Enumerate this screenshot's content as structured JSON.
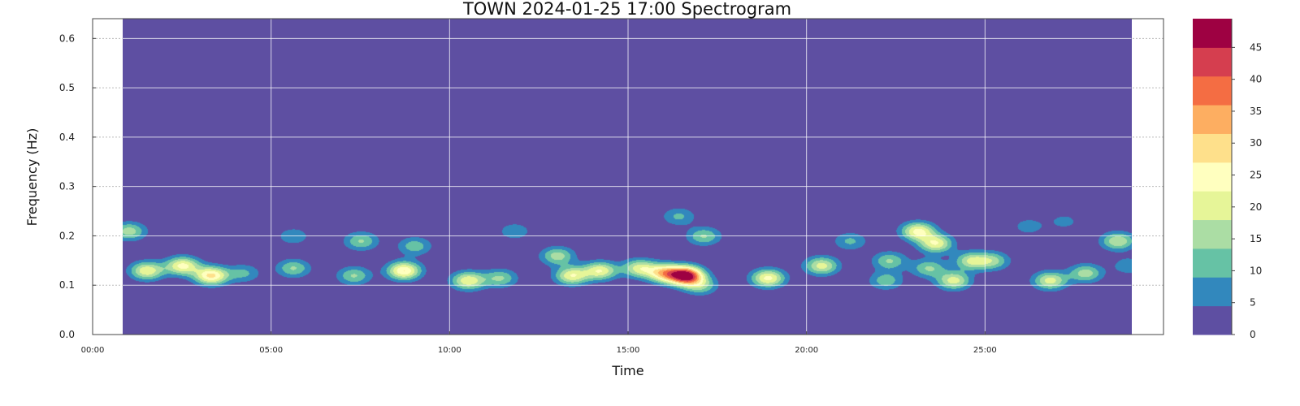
{
  "chart_data": {
    "type": "heatmap",
    "title": "TOWN 2024-01-25 17:00 Spectrogram",
    "xlabel": "Time",
    "ylabel": "Frequency (Hz)",
    "x_ticks": [
      "00:00",
      "05:00",
      "10:00",
      "15:00",
      "20:00",
      "25:00"
    ],
    "x_tick_minutes": [
      0,
      5,
      10,
      15,
      20,
      25
    ],
    "xlim_minutes": [
      0,
      30
    ],
    "data_range_minutes": [
      0.83,
      29.1
    ],
    "y_ticks": [
      "0.0",
      "0.1",
      "0.2",
      "0.3",
      "0.4",
      "0.5",
      "0.6"
    ],
    "y_tick_values": [
      0,
      0.1,
      0.2,
      0.3,
      0.4,
      0.5,
      0.6
    ],
    "ylim": [
      0,
      0.64
    ],
    "colorbar": {
      "ticks": [
        "0",
        "5",
        "10",
        "15",
        "20",
        "25",
        "30",
        "35",
        "40",
        "45"
      ],
      "levels": [
        0,
        4.5,
        9,
        13.5,
        18,
        22.5,
        27,
        31.5,
        36,
        40.5,
        45,
        49.5
      ],
      "colors": [
        "#5e4fa2",
        "#3288bd",
        "#66c2a5",
        "#abdda4",
        "#e6f598",
        "#ffffbf",
        "#fee08b",
        "#fdae61",
        "#f46d43",
        "#d53e4f",
        "#9e0142"
      ]
    },
    "grid": true,
    "peaks": [
      {
        "t": 1.0,
        "f": 0.21,
        "amp": 16
      },
      {
        "t": 1.5,
        "f": 0.13,
        "amp": 22
      },
      {
        "t": 2.5,
        "f": 0.14,
        "amp": 24
      },
      {
        "t": 3.3,
        "f": 0.12,
        "amp": 28
      },
      {
        "t": 4.2,
        "f": 0.125,
        "amp": 10
      },
      {
        "t": 5.6,
        "f": 0.135,
        "amp": 14
      },
      {
        "t": 5.6,
        "f": 0.2,
        "amp": 8
      },
      {
        "t": 7.3,
        "f": 0.12,
        "amp": 14
      },
      {
        "t": 7.5,
        "f": 0.19,
        "amp": 14
      },
      {
        "t": 8.7,
        "f": 0.13,
        "amp": 27
      },
      {
        "t": 9.0,
        "f": 0.18,
        "amp": 12
      },
      {
        "t": 10.5,
        "f": 0.11,
        "amp": 22
      },
      {
        "t": 11.4,
        "f": 0.115,
        "amp": 14
      },
      {
        "t": 11.8,
        "f": 0.21,
        "amp": 8
      },
      {
        "t": 13.0,
        "f": 0.16,
        "amp": 16
      },
      {
        "t": 13.4,
        "f": 0.12,
        "amp": 22
      },
      {
        "t": 14.2,
        "f": 0.13,
        "amp": 22
      },
      {
        "t": 15.3,
        "f": 0.135,
        "amp": 20
      },
      {
        "t": 16.0,
        "f": 0.125,
        "amp": 28
      },
      {
        "t": 16.6,
        "f": 0.12,
        "amp": 48
      },
      {
        "t": 16.4,
        "f": 0.24,
        "amp": 10
      },
      {
        "t": 17.0,
        "f": 0.1,
        "amp": 14
      },
      {
        "t": 17.1,
        "f": 0.2,
        "amp": 14
      },
      {
        "t": 18.9,
        "f": 0.115,
        "amp": 24
      },
      {
        "t": 20.4,
        "f": 0.14,
        "amp": 20
      },
      {
        "t": 21.2,
        "f": 0.19,
        "amp": 10
      },
      {
        "t": 22.3,
        "f": 0.15,
        "amp": 14
      },
      {
        "t": 22.2,
        "f": 0.11,
        "amp": 12
      },
      {
        "t": 23.1,
        "f": 0.21,
        "amp": 24
      },
      {
        "t": 23.6,
        "f": 0.185,
        "amp": 22
      },
      {
        "t": 23.4,
        "f": 0.135,
        "amp": 14
      },
      {
        "t": 24.1,
        "f": 0.11,
        "amp": 20
      },
      {
        "t": 24.6,
        "f": 0.15,
        "amp": 18
      },
      {
        "t": 25.2,
        "f": 0.15,
        "amp": 14
      },
      {
        "t": 26.8,
        "f": 0.11,
        "amp": 20
      },
      {
        "t": 27.8,
        "f": 0.125,
        "amp": 16
      },
      {
        "t": 28.7,
        "f": 0.19,
        "amp": 18
      },
      {
        "t": 29.0,
        "f": 0.14,
        "amp": 8
      },
      {
        "t": 26.2,
        "f": 0.22,
        "amp": 7
      },
      {
        "t": 27.2,
        "f": 0.23,
        "amp": 6
      }
    ]
  }
}
